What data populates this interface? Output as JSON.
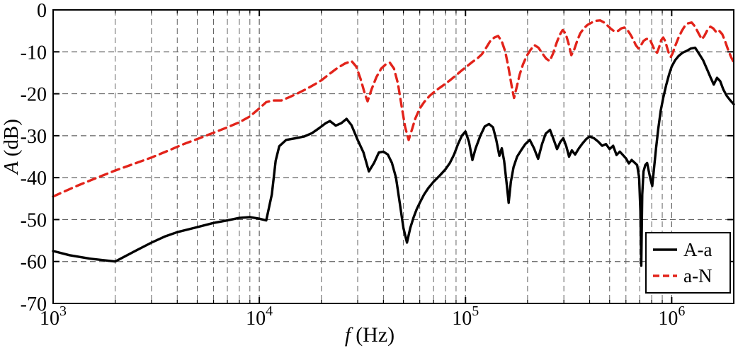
{
  "chart_data": {
    "type": "line",
    "title": "",
    "xlabel": "f (Hz)",
    "xlabel_var": "f",
    "xlabel_unit": "(Hz)",
    "ylabel": "A (dB)",
    "ylabel_var": "A",
    "ylabel_unit": "(dB)",
    "x_scale": "log",
    "xlim": [
      1000,
      2000000
    ],
    "ylim": [
      -70,
      0
    ],
    "x_tick_exponents": [
      3,
      4,
      5,
      6
    ],
    "y_ticks": [
      0,
      -10,
      -20,
      -30,
      -40,
      -50,
      -60,
      -70
    ],
    "grid": "on",
    "legend_position": "lower right",
    "colors": {
      "axis": "#000000",
      "grid": "#606060",
      "background": "#ffffff",
      "series_black": "#000000",
      "series_red": "#e2231a"
    },
    "series": [
      {
        "name": "A-a",
        "color": "#000000",
        "style": "solid",
        "points": [
          [
            1000,
            -57.5
          ],
          [
            1200,
            -58.5
          ],
          [
            1500,
            -59.3
          ],
          [
            2000,
            -60
          ],
          [
            2500,
            -57.5
          ],
          [
            3000,
            -55.5
          ],
          [
            3500,
            -54
          ],
          [
            4000,
            -53
          ],
          [
            5000,
            -51.8
          ],
          [
            6000,
            -50.8
          ],
          [
            7000,
            -50.2
          ],
          [
            8000,
            -49.6
          ],
          [
            9000,
            -49.4
          ],
          [
            10000,
            -49.8
          ],
          [
            10800,
            -50.2
          ],
          [
            11500,
            -44
          ],
          [
            12000,
            -36
          ],
          [
            12500,
            -32.5
          ],
          [
            13500,
            -31
          ],
          [
            15000,
            -30.6
          ],
          [
            16500,
            -30.2
          ],
          [
            18000,
            -29.4
          ],
          [
            19500,
            -28.2
          ],
          [
            21000,
            -27
          ],
          [
            22000,
            -26.5
          ],
          [
            23500,
            -27.6
          ],
          [
            25000,
            -27
          ],
          [
            26500,
            -26
          ],
          [
            28000,
            -27.5
          ],
          [
            30000,
            -31
          ],
          [
            32000,
            -34
          ],
          [
            34000,
            -38.5
          ],
          [
            36000,
            -36.5
          ],
          [
            38000,
            -34
          ],
          [
            40000,
            -33.8
          ],
          [
            42000,
            -34.5
          ],
          [
            44000,
            -36.5
          ],
          [
            46000,
            -40
          ],
          [
            48000,
            -46
          ],
          [
            50000,
            -52
          ],
          [
            52000,
            -55.5
          ],
          [
            54000,
            -52
          ],
          [
            56000,
            -49.5
          ],
          [
            58000,
            -47.5
          ],
          [
            60000,
            -46
          ],
          [
            63000,
            -44
          ],
          [
            66000,
            -42.5
          ],
          [
            70000,
            -41
          ],
          [
            75000,
            -39.5
          ],
          [
            80000,
            -38
          ],
          [
            84000,
            -36.5
          ],
          [
            88000,
            -34.5
          ],
          [
            92000,
            -32
          ],
          [
            96000,
            -30
          ],
          [
            100000,
            -29
          ],
          [
            104000,
            -31.5
          ],
          [
            108000,
            -35.8
          ],
          [
            112000,
            -33
          ],
          [
            118000,
            -30
          ],
          [
            124000,
            -27.8
          ],
          [
            130000,
            -27.2
          ],
          [
            136000,
            -28
          ],
          [
            141000,
            -31
          ],
          [
            146000,
            -34.8
          ],
          [
            150000,
            -33
          ],
          [
            154000,
            -36
          ],
          [
            158000,
            -41
          ],
          [
            162000,
            -46
          ],
          [
            166000,
            -41
          ],
          [
            171000,
            -37.5
          ],
          [
            178000,
            -35
          ],
          [
            186000,
            -33.5
          ],
          [
            195000,
            -32
          ],
          [
            205000,
            -31
          ],
          [
            215000,
            -33
          ],
          [
            225000,
            -35.5
          ],
          [
            235000,
            -32
          ],
          [
            245000,
            -29.5
          ],
          [
            257000,
            -28.6
          ],
          [
            268000,
            -31
          ],
          [
            278000,
            -33.2
          ],
          [
            288000,
            -31.5
          ],
          [
            298000,
            -30.6
          ],
          [
            308000,
            -32.5
          ],
          [
            318000,
            -35
          ],
          [
            328000,
            -33.5
          ],
          [
            340000,
            -34.5
          ],
          [
            355000,
            -33
          ],
          [
            370000,
            -31.8
          ],
          [
            385000,
            -30.8
          ],
          [
            400000,
            -30.2
          ],
          [
            420000,
            -30.6
          ],
          [
            440000,
            -31.4
          ],
          [
            460000,
            -32.4
          ],
          [
            480000,
            -32
          ],
          [
            500000,
            -33.2
          ],
          [
            520000,
            -32.4
          ],
          [
            540000,
            -34.6
          ],
          [
            560000,
            -33.8
          ],
          [
            580000,
            -34.6
          ],
          [
            600000,
            -35.4
          ],
          [
            620000,
            -36.6
          ],
          [
            640000,
            -35.8
          ],
          [
            660000,
            -36.4
          ],
          [
            680000,
            -37
          ],
          [
            695000,
            -40
          ],
          [
            705000,
            -48
          ],
          [
            712000,
            -61
          ],
          [
            720000,
            -44
          ],
          [
            730000,
            -38.5
          ],
          [
            745000,
            -37
          ],
          [
            760000,
            -36.5
          ],
          [
            775000,
            -38.5
          ],
          [
            790000,
            -40.5
          ],
          [
            805000,
            -42
          ],
          [
            820000,
            -38
          ],
          [
            840000,
            -33
          ],
          [
            860000,
            -28.5
          ],
          [
            885000,
            -24
          ],
          [
            910000,
            -21
          ],
          [
            940000,
            -18
          ],
          [
            970000,
            -15.5
          ],
          [
            1000000,
            -13.5
          ],
          [
            1040000,
            -12
          ],
          [
            1080000,
            -11
          ],
          [
            1130000,
            -10.2
          ],
          [
            1180000,
            -9.8
          ],
          [
            1240000,
            -9.2
          ],
          [
            1300000,
            -9
          ],
          [
            1360000,
            -10.5
          ],
          [
            1420000,
            -12
          ],
          [
            1480000,
            -14
          ],
          [
            1540000,
            -16
          ],
          [
            1600000,
            -17.8
          ],
          [
            1660000,
            -16.2
          ],
          [
            1720000,
            -17
          ],
          [
            1780000,
            -19
          ],
          [
            1850000,
            -20.5
          ],
          [
            1920000,
            -21.5
          ],
          [
            2000000,
            -22.5
          ]
        ]
      },
      {
        "name": "a-N",
        "color": "#e2231a",
        "style": "dashed",
        "points": [
          [
            1000,
            -44.5
          ],
          [
            1300,
            -42
          ],
          [
            1600,
            -40.2
          ],
          [
            2000,
            -38.3
          ],
          [
            2500,
            -36.6
          ],
          [
            3000,
            -35.2
          ],
          [
            3600,
            -33.6
          ],
          [
            4300,
            -32
          ],
          [
            5000,
            -30.8
          ],
          [
            6000,
            -29.3
          ],
          [
            7000,
            -28
          ],
          [
            8000,
            -26.8
          ],
          [
            9000,
            -25.4
          ],
          [
            10000,
            -23.5
          ],
          [
            10800,
            -22
          ],
          [
            11600,
            -21.6
          ],
          [
            12800,
            -21.6
          ],
          [
            14000,
            -20.8
          ],
          [
            15500,
            -19.8
          ],
          [
            17000,
            -18.8
          ],
          [
            18500,
            -17.8
          ],
          [
            20000,
            -16.8
          ],
          [
            22000,
            -15.2
          ],
          [
            24000,
            -13.8
          ],
          [
            26000,
            -12.8
          ],
          [
            28000,
            -12.2
          ],
          [
            29500,
            -13.5
          ],
          [
            31000,
            -16.5
          ],
          [
            32500,
            -20
          ],
          [
            33500,
            -21.8
          ],
          [
            35000,
            -19
          ],
          [
            37000,
            -16
          ],
          [
            39000,
            -14
          ],
          [
            41000,
            -13
          ],
          [
            43000,
            -12.6
          ],
          [
            45000,
            -14
          ],
          [
            47000,
            -17.5
          ],
          [
            49000,
            -23
          ],
          [
            51000,
            -28
          ],
          [
            53000,
            -31
          ],
          [
            55000,
            -28.5
          ],
          [
            57000,
            -26
          ],
          [
            60000,
            -23.5
          ],
          [
            63000,
            -22
          ],
          [
            67000,
            -20.5
          ],
          [
            72000,
            -19.2
          ],
          [
            78000,
            -18
          ],
          [
            84000,
            -16.8
          ],
          [
            90000,
            -15.6
          ],
          [
            96000,
            -14.4
          ],
          [
            102000,
            -13.4
          ],
          [
            108000,
            -12.4
          ],
          [
            114000,
            -11.6
          ],
          [
            120000,
            -10.6
          ],
          [
            126000,
            -9
          ],
          [
            132000,
            -7.4
          ],
          [
            138000,
            -6.6
          ],
          [
            144000,
            -6.2
          ],
          [
            150000,
            -7.5
          ],
          [
            156000,
            -10
          ],
          [
            162000,
            -14
          ],
          [
            168000,
            -18.5
          ],
          [
            172000,
            -21
          ],
          [
            177000,
            -18.5
          ],
          [
            183000,
            -15.5
          ],
          [
            190000,
            -13
          ],
          [
            198000,
            -11
          ],
          [
            207000,
            -9.5
          ],
          [
            216000,
            -8.4
          ],
          [
            226000,
            -9
          ],
          [
            236000,
            -10.4
          ],
          [
            246000,
            -11.6
          ],
          [
            256000,
            -12.2
          ],
          [
            266000,
            -10.4
          ],
          [
            276000,
            -8
          ],
          [
            286000,
            -6
          ],
          [
            296000,
            -4.8
          ],
          [
            306000,
            -5.6
          ],
          [
            316000,
            -8
          ],
          [
            326000,
            -10.8
          ],
          [
            336000,
            -9.6
          ],
          [
            348000,
            -7.4
          ],
          [
            360000,
            -5.6
          ],
          [
            375000,
            -4.4
          ],
          [
            390000,
            -3.6
          ],
          [
            410000,
            -3
          ],
          [
            430000,
            -2.6
          ],
          [
            450000,
            -2.5
          ],
          [
            470000,
            -3
          ],
          [
            490000,
            -3.8
          ],
          [
            510000,
            -4.6
          ],
          [
            530000,
            -5.2
          ],
          [
            550000,
            -5
          ],
          [
            570000,
            -4.4
          ],
          [
            590000,
            -4.2
          ],
          [
            610000,
            -4.8
          ],
          [
            630000,
            -5.8
          ],
          [
            650000,
            -7
          ],
          [
            670000,
            -8.4
          ],
          [
            690000,
            -9.2
          ],
          [
            710000,
            -8.4
          ],
          [
            730000,
            -7.4
          ],
          [
            750000,
            -7
          ],
          [
            770000,
            -6.8
          ],
          [
            790000,
            -7.4
          ],
          [
            810000,
            -8.6
          ],
          [
            830000,
            -9.8
          ],
          [
            850000,
            -10.2
          ],
          [
            870000,
            -8.8
          ],
          [
            890000,
            -7.2
          ],
          [
            910000,
            -6.6
          ],
          [
            930000,
            -7.4
          ],
          [
            950000,
            -9
          ],
          [
            970000,
            -10.4
          ],
          [
            990000,
            -11.2
          ],
          [
            1010000,
            -10.4
          ],
          [
            1040000,
            -8.6
          ],
          [
            1080000,
            -6.6
          ],
          [
            1120000,
            -5
          ],
          [
            1160000,
            -3.8
          ],
          [
            1200000,
            -3.2
          ],
          [
            1250000,
            -3
          ],
          [
            1300000,
            -4
          ],
          [
            1350000,
            -5.6
          ],
          [
            1400000,
            -7
          ],
          [
            1440000,
            -6.2
          ],
          [
            1490000,
            -4.8
          ],
          [
            1540000,
            -4
          ],
          [
            1590000,
            -4.4
          ],
          [
            1650000,
            -5.4
          ],
          [
            1700000,
            -5
          ],
          [
            1760000,
            -5.8
          ],
          [
            1820000,
            -7.6
          ],
          [
            1880000,
            -9.6
          ],
          [
            1940000,
            -11.2
          ],
          [
            2000000,
            -12.5
          ]
        ]
      }
    ]
  }
}
